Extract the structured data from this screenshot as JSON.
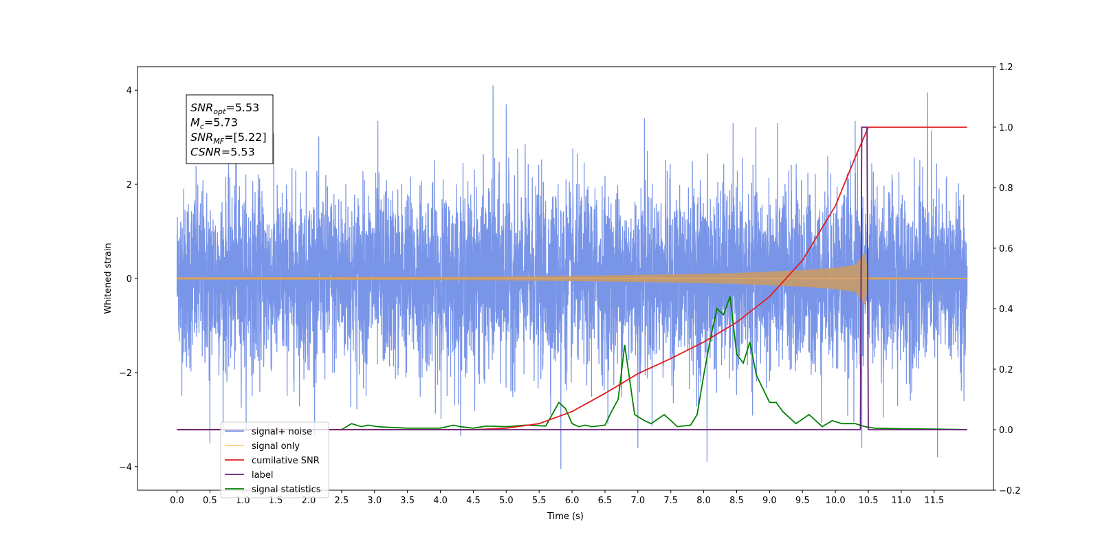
{
  "chart_data": {
    "type": "line",
    "title": "",
    "xlabel": "Time (s)",
    "ylabel": "Whitened strain",
    "y2label": "",
    "xlim": [
      -0.6,
      12.4
    ],
    "ylim": [
      -4.5,
      4.5
    ],
    "y2lim": [
      -0.2,
      1.2
    ],
    "x_ticks": [
      0.0,
      0.5,
      1.0,
      1.5,
      2.0,
      2.5,
      3.0,
      3.5,
      4.0,
      4.5,
      5.0,
      5.5,
      6.0,
      6.5,
      7.0,
      7.5,
      8.0,
      8.5,
      9.0,
      9.5,
      10.0,
      10.5,
      11.0,
      11.5
    ],
    "x_tick_labels": [
      "0.0",
      "0.5",
      "1.0",
      "1.5",
      "2.0",
      "2.5",
      "3.0",
      "3.5",
      "4.0",
      "4.5",
      "5.0",
      "5.5",
      "6.0",
      "6.5",
      "7.0",
      "7.5",
      "8.0",
      "8.5",
      "9.0",
      "9.5",
      "10.0",
      "10.5",
      "11.0",
      "11.5"
    ],
    "y_ticks": [
      -4,
      -2,
      0,
      2,
      4
    ],
    "y_tick_labels": [
      "−4",
      "−2",
      "0",
      "2",
      "4"
    ],
    "y2_ticks": [
      -0.2,
      0.0,
      0.2,
      0.4,
      0.6,
      0.8,
      1.0,
      1.2
    ],
    "y2_tick_labels": [
      "−0.2",
      "0.0",
      "0.2",
      "0.4",
      "0.6",
      "0.8",
      "1.0",
      "1.2"
    ],
    "grid": false,
    "legend_position": "lower-left",
    "annotation": {
      "lines": [
        {
          "base": "SNR",
          "sub": "opt",
          "rest": "=5.53"
        },
        {
          "base": "M",
          "sub": "c",
          "rest": "=5.73"
        },
        {
          "base": "SNR",
          "sub": "MF",
          "rest": "=[5.22]"
        },
        {
          "base": "CSNR",
          "sub": "",
          "rest": "=5.53"
        }
      ]
    },
    "series": [
      {
        "name": "signal+ noise",
        "axis": "left",
        "color": "#6a89e6",
        "x_range": [
          0.0,
          12.0
        ],
        "typical_amplitude": [
          -2.6,
          2.6
        ],
        "extremes": [
          {
            "x": 0.02,
            "y": 0.8
          },
          {
            "x": 0.9,
            "y": 3.35
          },
          {
            "x": 3.05,
            "y": 3.35
          },
          {
            "x": 4.8,
            "y": 4.1
          },
          {
            "x": 5.0,
            "y": 3.7
          },
          {
            "x": 7.1,
            "y": 3.4
          },
          {
            "x": 10.3,
            "y": 3.35
          },
          {
            "x": 11.4,
            "y": 3.95
          },
          {
            "x": 0.5,
            "y": -3.5
          },
          {
            "x": 5.83,
            "y": -4.05
          },
          {
            "x": 7.0,
            "y": -3.6
          },
          {
            "x": 8.05,
            "y": -3.9
          },
          {
            "x": 10.4,
            "y": -3.6
          },
          {
            "x": 11.55,
            "y": -3.8
          }
        ]
      },
      {
        "name": "signal only",
        "axis": "left",
        "color": "#ffb84d",
        "envelope": {
          "x": [
            0.0,
            4.5,
            6.0,
            7.5,
            8.5,
            9.5,
            10.0,
            10.3,
            10.45,
            10.5,
            12.0
          ],
          "amp": [
            0.02,
            0.03,
            0.05,
            0.08,
            0.11,
            0.17,
            0.22,
            0.28,
            0.55,
            0.02,
            0.01
          ]
        }
      },
      {
        "name": "cumilative SNR",
        "axis": "right",
        "color": "#e31a1c",
        "x": [
          0.0,
          4.5,
          5.0,
          5.5,
          6.0,
          6.5,
          7.0,
          7.5,
          8.0,
          8.5,
          9.0,
          9.5,
          10.0,
          10.3,
          10.5,
          12.0
        ],
        "values": [
          0.0,
          0.0,
          0.005,
          0.02,
          0.06,
          0.12,
          0.185,
          0.235,
          0.29,
          0.355,
          0.44,
          0.56,
          0.74,
          0.9,
          1.0,
          1.0
        ]
      },
      {
        "name": "label",
        "axis": "right",
        "color": "#6a1f7a",
        "x": [
          0.0,
          10.38,
          10.4,
          10.48,
          10.5,
          12.0
        ],
        "values": [
          0.0,
          0.0,
          1.0,
          1.0,
          0.0,
          0.0
        ]
      },
      {
        "name": "signal statistics",
        "axis": "right",
        "color": "#008000",
        "x": [
          0.0,
          2.0,
          2.5,
          2.65,
          2.8,
          2.9,
          3.05,
          3.2,
          3.5,
          4.0,
          4.2,
          4.3,
          4.5,
          4.7,
          5.0,
          5.3,
          5.6,
          5.8,
          5.9,
          6.0,
          6.1,
          6.2,
          6.3,
          6.5,
          6.6,
          6.7,
          6.8,
          6.95,
          7.1,
          7.2,
          7.4,
          7.6,
          7.8,
          7.9,
          8.0,
          8.1,
          8.2,
          8.3,
          8.4,
          8.5,
          8.6,
          8.7,
          8.8,
          9.0,
          9.1,
          9.2,
          9.4,
          9.6,
          9.8,
          9.95,
          10.1,
          10.3,
          10.45,
          10.6,
          11.0,
          11.5,
          12.0
        ],
        "values": [
          0.0,
          0.0,
          0.0,
          0.02,
          0.01,
          0.015,
          0.01,
          0.008,
          0.005,
          0.005,
          0.015,
          0.01,
          0.005,
          0.012,
          0.01,
          0.015,
          0.012,
          0.09,
          0.07,
          0.02,
          0.01,
          0.015,
          0.01,
          0.015,
          0.06,
          0.1,
          0.28,
          0.05,
          0.03,
          0.02,
          0.05,
          0.01,
          0.015,
          0.05,
          0.18,
          0.3,
          0.4,
          0.38,
          0.44,
          0.25,
          0.22,
          0.29,
          0.18,
          0.09,
          0.09,
          0.06,
          0.02,
          0.05,
          0.01,
          0.03,
          0.02,
          0.02,
          0.01,
          0.005,
          0.003,
          0.002,
          0.0
        ]
      }
    ]
  }
}
